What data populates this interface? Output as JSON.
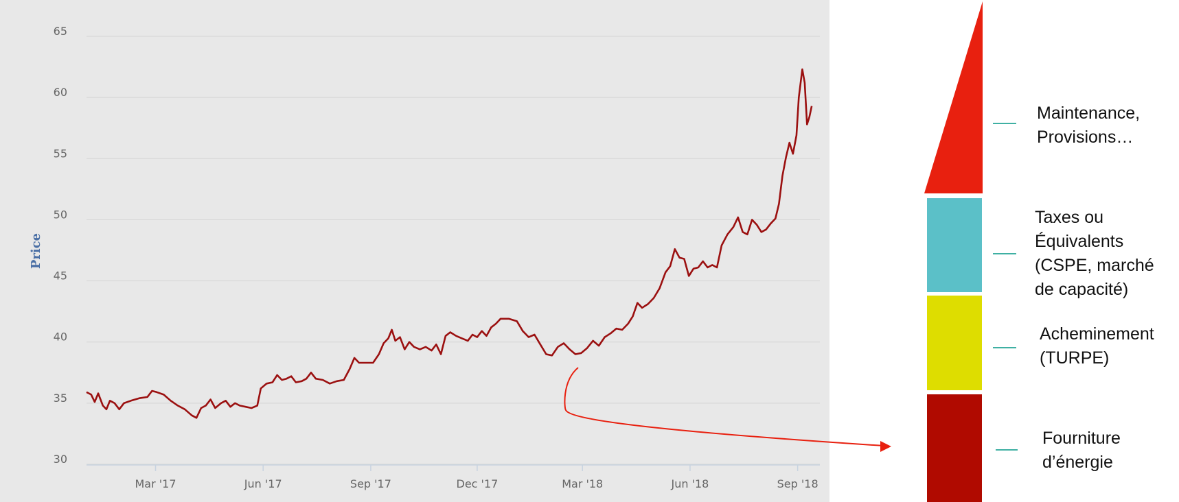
{
  "chart_data": {
    "type": "line",
    "ylabel": "Price",
    "ylim": [
      30,
      65
    ],
    "y_ticks": [
      "30",
      "35",
      "40",
      "45",
      "50",
      "55",
      "60",
      "65"
    ],
    "x_ticks": [
      "Mar '17",
      "Jun '17",
      "Sep '17",
      "Dec '17",
      "Mar '18",
      "Jun '18",
      "Sep '18"
    ],
    "x_tick_dates": [
      "2017-03-01",
      "2017-06-01",
      "2017-09-01",
      "2017-12-01",
      "2018-03-01",
      "2018-06-01",
      "2018-09-01"
    ],
    "xlim": [
      "2017-01-01",
      "2018-09-20"
    ],
    "grid": true,
    "series": [
      {
        "color": "#9b1010",
        "points": [
          [
            "2017-01-01",
            35.9
          ],
          [
            "2017-01-05",
            35.7
          ],
          [
            "2017-01-08",
            35.1
          ],
          [
            "2017-01-11",
            35.8
          ],
          [
            "2017-01-15",
            34.8
          ],
          [
            "2017-01-18",
            34.5
          ],
          [
            "2017-01-21",
            35.2
          ],
          [
            "2017-01-25",
            35.0
          ],
          [
            "2017-01-29",
            34.5
          ],
          [
            "2017-02-02",
            35.0
          ],
          [
            "2017-02-08",
            35.2
          ],
          [
            "2017-02-15",
            35.4
          ],
          [
            "2017-02-22",
            35.5
          ],
          [
            "2017-02-26",
            36.0
          ],
          [
            "2017-03-02",
            35.9
          ],
          [
            "2017-03-08",
            35.7
          ],
          [
            "2017-03-14",
            35.2
          ],
          [
            "2017-03-20",
            34.8
          ],
          [
            "2017-03-26",
            34.5
          ],
          [
            "2017-04-01",
            34.0
          ],
          [
            "2017-04-05",
            33.8
          ],
          [
            "2017-04-09",
            34.6
          ],
          [
            "2017-04-13",
            34.8
          ],
          [
            "2017-04-17",
            35.3
          ],
          [
            "2017-04-21",
            34.6
          ],
          [
            "2017-04-26",
            35.0
          ],
          [
            "2017-04-30",
            35.2
          ],
          [
            "2017-05-04",
            34.7
          ],
          [
            "2017-05-08",
            35.0
          ],
          [
            "2017-05-12",
            34.8
          ],
          [
            "2017-05-17",
            34.7
          ],
          [
            "2017-05-22",
            34.6
          ],
          [
            "2017-05-27",
            34.8
          ],
          [
            "2017-05-30",
            36.2
          ],
          [
            "2017-06-04",
            36.6
          ],
          [
            "2017-06-09",
            36.7
          ],
          [
            "2017-06-13",
            37.3
          ],
          [
            "2017-06-17",
            36.9
          ],
          [
            "2017-06-21",
            37.0
          ],
          [
            "2017-06-25",
            37.2
          ],
          [
            "2017-06-29",
            36.7
          ],
          [
            "2017-07-04",
            36.8
          ],
          [
            "2017-07-08",
            37.0
          ],
          [
            "2017-07-12",
            37.5
          ],
          [
            "2017-07-16",
            37.0
          ],
          [
            "2017-07-22",
            36.9
          ],
          [
            "2017-07-28",
            36.6
          ],
          [
            "2017-08-03",
            36.8
          ],
          [
            "2017-08-09",
            36.9
          ],
          [
            "2017-08-14",
            37.8
          ],
          [
            "2017-08-18",
            38.7
          ],
          [
            "2017-08-22",
            38.3
          ],
          [
            "2017-08-28",
            38.3
          ],
          [
            "2017-09-03",
            38.3
          ],
          [
            "2017-09-08",
            39.0
          ],
          [
            "2017-09-12",
            39.9
          ],
          [
            "2017-09-16",
            40.3
          ],
          [
            "2017-09-19",
            41.0
          ],
          [
            "2017-09-22",
            40.1
          ],
          [
            "2017-09-26",
            40.4
          ],
          [
            "2017-09-30",
            39.4
          ],
          [
            "2017-10-04",
            40.0
          ],
          [
            "2017-10-08",
            39.6
          ],
          [
            "2017-10-13",
            39.4
          ],
          [
            "2017-10-18",
            39.6
          ],
          [
            "2017-10-23",
            39.3
          ],
          [
            "2017-10-27",
            39.8
          ],
          [
            "2017-10-31",
            39.0
          ],
          [
            "2017-11-04",
            40.5
          ],
          [
            "2017-11-08",
            40.8
          ],
          [
            "2017-11-13",
            40.5
          ],
          [
            "2017-11-18",
            40.3
          ],
          [
            "2017-11-23",
            40.1
          ],
          [
            "2017-11-27",
            40.6
          ],
          [
            "2017-12-01",
            40.4
          ],
          [
            "2017-12-05",
            40.9
          ],
          [
            "2017-12-09",
            40.5
          ],
          [
            "2017-12-13",
            41.2
          ],
          [
            "2017-12-17",
            41.5
          ],
          [
            "2017-12-21",
            41.9
          ],
          [
            "2017-12-28",
            41.9
          ],
          [
            "2018-01-04",
            41.7
          ],
          [
            "2018-01-09",
            40.9
          ],
          [
            "2018-01-14",
            40.4
          ],
          [
            "2018-01-19",
            40.6
          ],
          [
            "2018-01-24",
            39.8
          ],
          [
            "2018-01-29",
            39.0
          ],
          [
            "2018-02-03",
            38.9
          ],
          [
            "2018-02-08",
            39.6
          ],
          [
            "2018-02-13",
            39.9
          ],
          [
            "2018-02-18",
            39.4
          ],
          [
            "2018-02-23",
            39.0
          ],
          [
            "2018-02-28",
            39.1
          ],
          [
            "2018-03-05",
            39.5
          ],
          [
            "2018-03-10",
            40.1
          ],
          [
            "2018-03-15",
            39.7
          ],
          [
            "2018-03-20",
            40.4
          ],
          [
            "2018-03-25",
            40.7
          ],
          [
            "2018-03-30",
            41.1
          ],
          [
            "2018-04-04",
            41.0
          ],
          [
            "2018-04-09",
            41.5
          ],
          [
            "2018-04-13",
            42.1
          ],
          [
            "2018-04-17",
            43.2
          ],
          [
            "2018-04-21",
            42.8
          ],
          [
            "2018-04-26",
            43.1
          ],
          [
            "2018-05-01",
            43.6
          ],
          [
            "2018-05-06",
            44.4
          ],
          [
            "2018-05-11",
            45.7
          ],
          [
            "2018-05-15",
            46.2
          ],
          [
            "2018-05-19",
            47.6
          ],
          [
            "2018-05-23",
            46.9
          ],
          [
            "2018-05-27",
            46.8
          ],
          [
            "2018-05-31",
            45.4
          ],
          [
            "2018-06-04",
            46.0
          ],
          [
            "2018-06-08",
            46.1
          ],
          [
            "2018-06-12",
            46.6
          ],
          [
            "2018-06-16",
            46.1
          ],
          [
            "2018-06-20",
            46.3
          ],
          [
            "2018-06-24",
            46.1
          ],
          [
            "2018-06-28",
            47.9
          ],
          [
            "2018-07-03",
            48.8
          ],
          [
            "2018-07-08",
            49.4
          ],
          [
            "2018-07-12",
            50.2
          ],
          [
            "2018-07-16",
            49.0
          ],
          [
            "2018-07-20",
            48.8
          ],
          [
            "2018-07-24",
            50.0
          ],
          [
            "2018-07-28",
            49.6
          ],
          [
            "2018-08-01",
            49.0
          ],
          [
            "2018-08-05",
            49.2
          ],
          [
            "2018-08-09",
            49.7
          ],
          [
            "2018-08-13",
            50.1
          ],
          [
            "2018-08-16",
            51.3
          ],
          [
            "2018-08-19",
            53.6
          ],
          [
            "2018-08-22",
            55.1
          ],
          [
            "2018-08-25",
            56.3
          ],
          [
            "2018-08-28",
            55.4
          ],
          [
            "2018-08-31",
            56.9
          ],
          [
            "2018-09-02",
            60.0
          ],
          [
            "2018-09-05",
            62.3
          ],
          [
            "2018-09-07",
            61.2
          ],
          [
            "2018-09-09",
            57.8
          ],
          [
            "2018-09-11",
            58.4
          ],
          [
            "2018-09-13",
            59.3
          ]
        ]
      }
    ]
  },
  "legend_items": [
    {
      "label": "Maintenance,\nProvisions…",
      "color": "#e8200f"
    },
    {
      "label": "Taxes ou\nÉquivalents\n(CSPE, marché\nde capacité)",
      "color": "#5bc0c8"
    },
    {
      "label": "Acheminement\n(TURPE)",
      "color": "#dedd00"
    },
    {
      "label": "Fourniture\nd’énergie",
      "color": "#b00a00"
    }
  ],
  "colors": {
    "plot_background": "#e8e8e8",
    "line": "#9b1010",
    "grid": "#d4d4d4",
    "arrow": "#e8200f",
    "legend_dash": "#3fb0a3",
    "ylabel": "#4a6fa5"
  }
}
